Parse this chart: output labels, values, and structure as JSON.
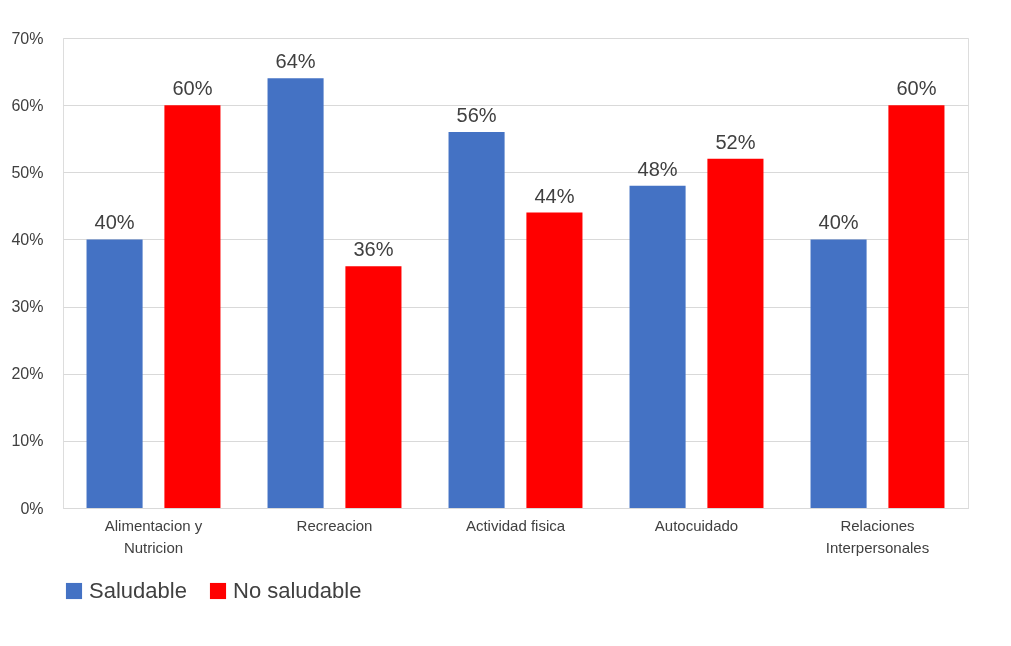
{
  "chart_data": {
    "type": "bar",
    "categories": [
      "Alimentacion y Nutricion",
      "Recreacion",
      "Actividad fisica",
      "Autocuidado",
      "Relaciones Interpersonales"
    ],
    "series": [
      {
        "name": "Saludable",
        "color": "#4472c4",
        "values": [
          40,
          64,
          56,
          48,
          40
        ],
        "value_labels": [
          "40%",
          "64%",
          "56%",
          "48%",
          "40%"
        ]
      },
      {
        "name": "No saludable",
        "color": "#ff0000",
        "values": [
          60,
          36,
          44,
          52,
          60
        ],
        "value_labels": [
          "60%",
          "36%",
          "44%",
          "52%",
          "60%"
        ]
      }
    ],
    "ylim": [
      0,
      70
    ],
    "yticks": [
      {
        "value": 0,
        "label": "0%"
      },
      {
        "value": 10,
        "label": "10%"
      },
      {
        "value": 20,
        "label": "20%"
      },
      {
        "value": 30,
        "label": "30%"
      },
      {
        "value": 40,
        "label": "40%"
      },
      {
        "value": 50,
        "label": "50%"
      },
      {
        "value": 60,
        "label": "60%"
      },
      {
        "value": 70,
        "label": "70%"
      }
    ],
    "grid": "y",
    "legend": "bottom"
  }
}
